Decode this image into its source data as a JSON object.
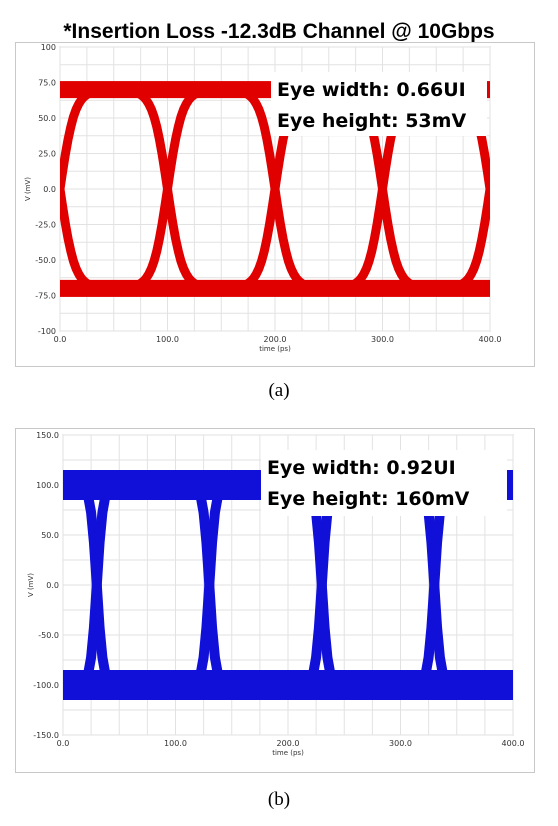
{
  "title": "*Insertion Loss -12.3dB Channel @ 10Gbps",
  "colors": {
    "eye_a": "#e00000",
    "eye_b": "#1010d8",
    "grid": "#e2e2e2",
    "frame": "#c8c8c8"
  },
  "chart_data": [
    {
      "type": "line",
      "caption": "(a)",
      "xlabel": "time (ps)",
      "ylabel": "V (mV)",
      "xlim": [
        0,
        400
      ],
      "ylim": [
        -100,
        100
      ],
      "xticks": [
        "0.0",
        "100.0",
        "200.0",
        "300.0",
        "400.0"
      ],
      "yticks": [
        "100",
        "75.0",
        "50.0",
        "25.0",
        "0.0",
        "-25.0",
        "-50.0",
        "-75.0",
        "-100"
      ],
      "grid": true,
      "annotations": [
        "Eye width: 0.66UI",
        "Eye height: 53mV"
      ],
      "eye": {
        "unit_interval_ps": 100,
        "crossings_ps": [
          0,
          100,
          200,
          300,
          400
        ],
        "levels_mv": [
          -70,
          70
        ],
        "crossing_mv": 0
      }
    },
    {
      "type": "line",
      "caption": "(b)",
      "xlabel": "time (ps)",
      "ylabel": "V (mV)",
      "xlim": [
        0,
        400
      ],
      "ylim": [
        -150,
        150
      ],
      "xticks": [
        "0.0",
        "100.0",
        "200.0",
        "300.0",
        "400.0"
      ],
      "yticks": [
        "150.0",
        "100.0",
        "50.0",
        "0.0",
        "-50.0",
        "-100.0",
        "-150.0"
      ],
      "grid": true,
      "annotations": [
        "Eye width: 0.92UI",
        "Eye height: 160mV"
      ],
      "eye": {
        "unit_interval_ps": 100,
        "crossings_ps": [
          30,
          130,
          230,
          330
        ],
        "levels_mv": [
          -100,
          100
        ],
        "crossing_mv": 0
      }
    }
  ]
}
